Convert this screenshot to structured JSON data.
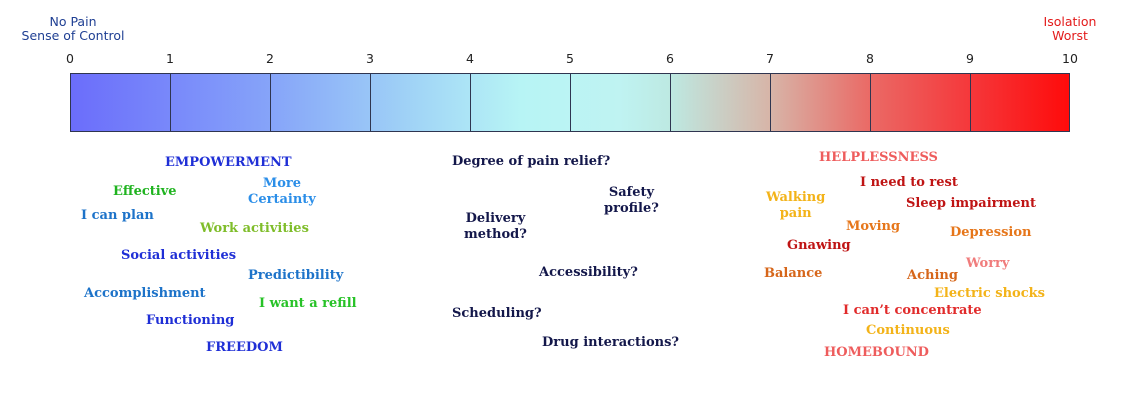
{
  "scale": {
    "left_label": [
      "No Pain",
      "Sense of Control"
    ],
    "right_label": [
      "Isolation",
      "Worst"
    ],
    "ticks": [
      "0",
      "1",
      "2",
      "3",
      "4",
      "5",
      "6",
      "7",
      "8",
      "9",
      "10"
    ],
    "gradient_colors": [
      "#6b6dfb",
      "#a2d6f6",
      "#bff3f2",
      "#d7b5a8",
      "#fe0b0b"
    ]
  },
  "positive_terms": {
    "empowerment": "EMPOWERMENT",
    "effective": "Effective",
    "more_certainty": [
      "More",
      "Certainty"
    ],
    "i_can_plan": "I can plan",
    "work_activities": "Work activities",
    "social_activities": "Social activities",
    "predictibility": "Predictibility",
    "accomplishment": "Accomplishment",
    "i_want_a_refill": "I want a refill",
    "functioning": "Functioning",
    "freedom": "FREEDOM"
  },
  "questions": {
    "degree_of_pain_relief": "Degree of pain relief?",
    "safety_profile": [
      "Safety",
      "profile?"
    ],
    "delivery_method": [
      "Delivery",
      "method?"
    ],
    "accessibility": "Accessibility?",
    "scheduling": "Scheduling?",
    "drug_interactions": "Drug interactions?"
  },
  "negative_terms": {
    "helplessness": "HELPLESSNESS",
    "i_need_to_rest": "I need to rest",
    "walking_pain": [
      "Walking",
      "pain"
    ],
    "sleep_impairment": "Sleep impairment",
    "moving": "Moving",
    "depression": "Depression",
    "gnawing": "Gnawing",
    "worry": "Worry",
    "balance": "Balance",
    "aching": "Aching",
    "electric_shocks": "Electric shocks",
    "i_cant_concentrate": "I can’t concentrate",
    "continuous": "Continuous",
    "homebound": "HOMEBOUND"
  }
}
